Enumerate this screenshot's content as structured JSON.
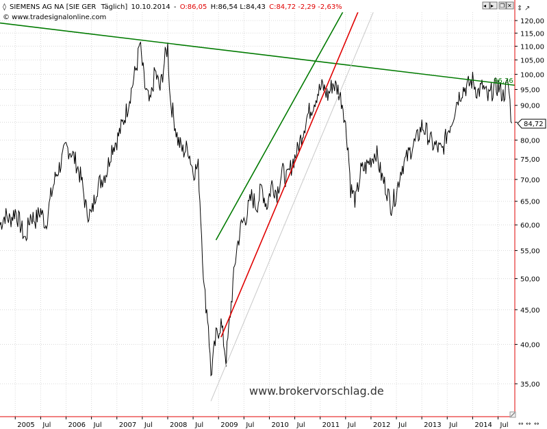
{
  "header": {
    "symbol": "SIEMENS AG NA [SIE GER",
    "interval": "Täglich]",
    "date": "10.10.2014",
    "separator": "-",
    "ohlc_open": "O:86,05",
    "ohlc_high": "H:86,54",
    "ohlc_low": "L:84,43",
    "ohlc_close": "C:84,72 -2,29 -2,63%",
    "copyright": "© www.tradesignalonline.com"
  },
  "window_buttons": {
    "left_arrow": "◂",
    "right_arrow": "▸",
    "restore": "❐",
    "close": "✕"
  },
  "price_axis": {
    "scale": "log",
    "ticks": [
      120,
      115,
      110,
      105,
      100,
      95,
      90,
      85,
      80,
      75,
      70,
      65,
      60,
      55,
      50,
      45,
      40,
      35
    ],
    "tick_labels": [
      "120,00",
      "115,00",
      "110,00",
      "105,00",
      "100,00",
      "95,00",
      "90,00",
      "85,00",
      "80,00",
      "75,00",
      "70,00",
      "65,00",
      "60,00",
      "55,00",
      "50,00",
      "45,00",
      "40,00",
      "35,00"
    ],
    "current_price_label": "84,72",
    "trendline_price_label": "96,36"
  },
  "time_axis": {
    "labels": [
      {
        "text": "2005",
        "t": 2005.0
      },
      {
        "text": "Jul",
        "t": 2005.5
      },
      {
        "text": "2006",
        "t": 2006.0
      },
      {
        "text": "Jul",
        "t": 2006.5
      },
      {
        "text": "2007",
        "t": 2007.0
      },
      {
        "text": "Jul",
        "t": 2007.5
      },
      {
        "text": "2008",
        "t": 2008.0
      },
      {
        "text": "Jul",
        "t": 2008.5
      },
      {
        "text": "2009",
        "t": 2009.0
      },
      {
        "text": "Jul",
        "t": 2009.5
      },
      {
        "text": "2010",
        "t": 2010.0
      },
      {
        "text": "Jul",
        "t": 2010.5
      },
      {
        "text": "2011",
        "t": 2011.0
      },
      {
        "text": "Jul",
        "t": 2011.5
      },
      {
        "text": "2012",
        "t": 2012.0
      },
      {
        "text": "Jul",
        "t": 2012.5
      },
      {
        "text": "2013",
        "t": 2013.0
      },
      {
        "text": "Jul",
        "t": 2013.5
      },
      {
        "text": "2014",
        "t": 2014.0
      },
      {
        "text": "Jul",
        "t": 2014.5
      }
    ]
  },
  "watermark": "www.brokervorschlag.de",
  "colors": {
    "price": "#000000",
    "green_line": "#007a00",
    "red_line": "#e00000",
    "gray_line": "#c8c8c8",
    "grid": "#d8d8d8",
    "axis_border": "#e00000"
  },
  "chart_data": {
    "type": "line",
    "title": "",
    "xlabel": "",
    "ylabel": "",
    "y_scale": "log",
    "ylim": [
      32,
      126
    ],
    "xlim": [
      2004.7,
      2014.83
    ],
    "grid": true,
    "series": [
      {
        "values_xy": [
          [
            2004.7,
            60
          ],
          [
            2004.8,
            62
          ],
          [
            2004.9,
            61
          ],
          [
            2005.0,
            63
          ],
          [
            2005.1,
            60
          ],
          [
            2005.2,
            57
          ],
          [
            2005.3,
            62
          ],
          [
            2005.4,
            61
          ],
          [
            2005.5,
            63
          ],
          [
            2005.6,
            60
          ],
          [
            2005.7,
            66
          ],
          [
            2005.8,
            71
          ],
          [
            2005.9,
            74
          ],
          [
            2006.0,
            78
          ],
          [
            2006.1,
            77
          ],
          [
            2006.2,
            74
          ],
          [
            2006.3,
            70
          ],
          [
            2006.4,
            63
          ],
          [
            2006.5,
            62
          ],
          [
            2006.6,
            68
          ],
          [
            2006.7,
            70
          ],
          [
            2006.8,
            72
          ],
          [
            2006.9,
            78
          ],
          [
            2007.0,
            80
          ],
          [
            2007.1,
            84
          ],
          [
            2007.2,
            89
          ],
          [
            2007.3,
            96
          ],
          [
            2007.4,
            104
          ],
          [
            2007.45,
            111
          ],
          [
            2007.55,
            96
          ],
          [
            2007.65,
            90
          ],
          [
            2007.75,
            101
          ],
          [
            2007.85,
            95
          ],
          [
            2007.95,
            106
          ],
          [
            2008.0,
            110
          ],
          [
            2008.05,
            92
          ],
          [
            2008.1,
            88
          ],
          [
            2008.2,
            80
          ],
          [
            2008.3,
            77
          ],
          [
            2008.4,
            78
          ],
          [
            2008.5,
            72
          ],
          [
            2008.6,
            73
          ],
          [
            2008.65,
            62
          ],
          [
            2008.72,
            48
          ],
          [
            2008.8,
            43
          ],
          [
            2008.85,
            36
          ],
          [
            2008.95,
            41
          ],
          [
            2009.05,
            43
          ],
          [
            2009.15,
            38
          ],
          [
            2009.25,
            46
          ],
          [
            2009.35,
            55
          ],
          [
            2009.45,
            60
          ],
          [
            2009.55,
            62
          ],
          [
            2009.65,
            66
          ],
          [
            2009.75,
            64
          ],
          [
            2009.85,
            68
          ],
          [
            2009.95,
            64
          ],
          [
            2010.05,
            69
          ],
          [
            2010.15,
            67
          ],
          [
            2010.25,
            72
          ],
          [
            2010.35,
            70
          ],
          [
            2010.45,
            74
          ],
          [
            2010.55,
            77
          ],
          [
            2010.65,
            82
          ],
          [
            2010.75,
            87
          ],
          [
            2010.85,
            90
          ],
          [
            2010.95,
            94
          ],
          [
            2011.05,
            96
          ],
          [
            2011.15,
            93
          ],
          [
            2011.25,
            97
          ],
          [
            2011.35,
            95
          ],
          [
            2011.45,
            90
          ],
          [
            2011.55,
            78
          ],
          [
            2011.6,
            68
          ],
          [
            2011.7,
            65
          ],
          [
            2011.8,
            72
          ],
          [
            2011.9,
            73
          ],
          [
            2012.0,
            75
          ],
          [
            2012.1,
            77
          ],
          [
            2012.2,
            71
          ],
          [
            2012.3,
            68
          ],
          [
            2012.4,
            64
          ],
          [
            2012.5,
            67
          ],
          [
            2012.6,
            73
          ],
          [
            2012.7,
            75
          ],
          [
            2012.8,
            78
          ],
          [
            2012.9,
            80
          ],
          [
            2013.0,
            84
          ],
          [
            2013.1,
            82
          ],
          [
            2013.2,
            79
          ],
          [
            2013.3,
            78
          ],
          [
            2013.4,
            77
          ],
          [
            2013.5,
            82
          ],
          [
            2013.6,
            86
          ],
          [
            2013.7,
            92
          ],
          [
            2013.8,
            95
          ],
          [
            2013.9,
            96
          ],
          [
            2014.0,
            98
          ],
          [
            2014.1,
            94
          ],
          [
            2014.2,
            96
          ],
          [
            2014.3,
            92
          ],
          [
            2014.4,
            95
          ],
          [
            2014.5,
            96
          ],
          [
            2014.6,
            93
          ],
          [
            2014.7,
            97
          ],
          [
            2014.77,
            84.72
          ]
        ]
      }
    ],
    "trendlines": [
      {
        "color": "green",
        "points": [
          [
            2004.7,
            119
          ],
          [
            2014.83,
            96.36
          ]
        ]
      },
      {
        "color": "green",
        "points": [
          [
            2008.95,
            57
          ],
          [
            2011.85,
            140
          ]
        ]
      },
      {
        "color": "red",
        "points": [
          [
            2009.05,
            41
          ],
          [
            2012.05,
            140
          ]
        ]
      },
      {
        "color": "gray",
        "points": [
          [
            2008.85,
            33
          ],
          [
            2012.35,
            140
          ]
        ]
      }
    ],
    "last_close": 84.72,
    "last_date": "10.10.2014"
  }
}
